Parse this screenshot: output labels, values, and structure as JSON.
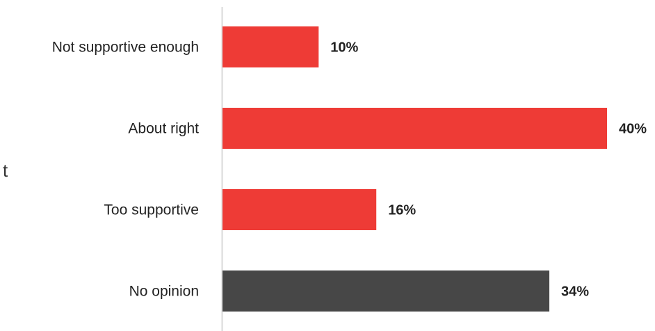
{
  "chart_data": {
    "type": "bar",
    "orientation": "horizontal",
    "title": "",
    "xlabel": "",
    "ylabel": "",
    "categories": [
      "Not supportive enough",
      "About right",
      "Too supportive",
      "No opinion"
    ],
    "values": [
      10,
      40,
      16,
      34
    ],
    "value_labels": [
      "10%",
      "40%",
      "16%",
      "34%"
    ],
    "xlim": [
      0,
      40
    ],
    "grid": false,
    "legend": "none",
    "bar_colors": [
      "#ee3b36",
      "#ee3b36",
      "#ee3b36",
      "#474747"
    ]
  },
  "cropped_text_fragment": "t"
}
